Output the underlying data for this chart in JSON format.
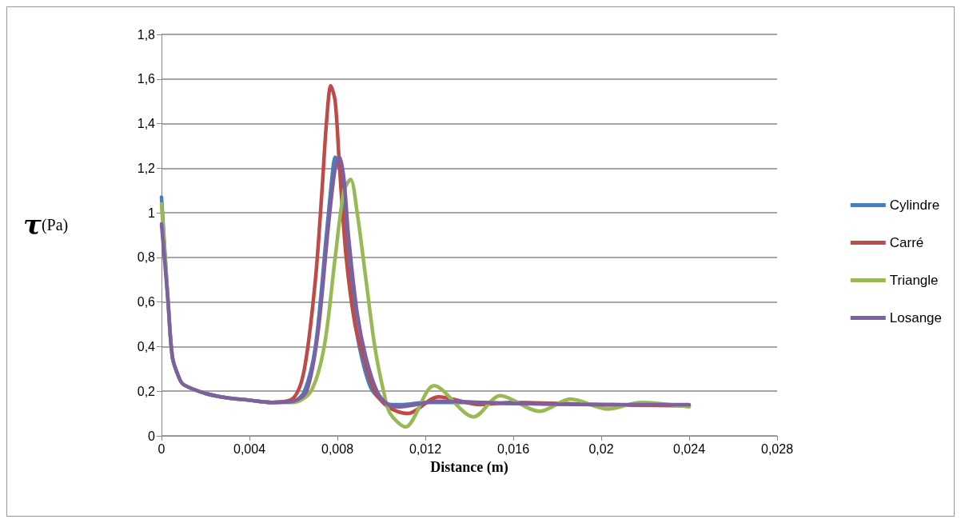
{
  "chart_data": {
    "type": "line",
    "xlabel": "Distance (m)",
    "ylabel": "τ(Pa)",
    "xlim": [
      0,
      0.028
    ],
    "xticks": [
      0,
      {
        "value": 0.004,
        "label": "0,004"
      },
      {
        "value": 0.008,
        "label": "0,008"
      },
      {
        "value": 0.012,
        "label": "0,012"
      },
      {
        "value": 0.016,
        "label": "0,016"
      },
      {
        "value": 0.02,
        "label": "0,02"
      },
      {
        "value": 0.024,
        "label": "0,024"
      },
      {
        "value": 0.028,
        "label": "0,028"
      }
    ],
    "ylim": [
      0,
      1.8
    ],
    "yticks": [
      0,
      {
        "value": 0.2,
        "label": "0,2"
      },
      {
        "value": 0.4,
        "label": "0,4"
      },
      {
        "value": 0.6,
        "label": "0,6"
      },
      {
        "value": 0.8,
        "label": "0,8"
      },
      1,
      {
        "value": 1.2,
        "label": "1,2"
      },
      {
        "value": 1.4,
        "label": "1,4"
      },
      {
        "value": 1.6,
        "label": "1,6"
      },
      {
        "value": 1.8,
        "label": "1,8"
      }
    ],
    "grid": "y",
    "legend": "right",
    "marker": "none",
    "line_style": "solid",
    "series": [
      {
        "name": "Cylindre",
        "color": "#4a7ebb",
        "x": [
          0,
          0.0003,
          0.0005,
          0.0008,
          0.001,
          0.002,
          0.003,
          0.004,
          0.005,
          0.006,
          0.0065,
          0.007,
          0.0075,
          0.0078,
          0.0079,
          0.0081,
          0.0083,
          0.0087,
          0.009,
          0.0095,
          0.01,
          0.0105,
          0.011,
          0.012,
          0.014,
          0.016,
          0.02,
          0.024
        ],
        "values": [
          1.07,
          0.6,
          0.35,
          0.26,
          0.23,
          0.19,
          0.17,
          0.16,
          0.15,
          0.155,
          0.2,
          0.4,
          0.9,
          1.2,
          1.25,
          1.2,
          1.0,
          0.6,
          0.4,
          0.22,
          0.16,
          0.14,
          0.14,
          0.15,
          0.15,
          0.145,
          0.14,
          0.135
        ]
      },
      {
        "name": "Carré",
        "color": "#be4b48",
        "x": [
          0.004,
          0.005,
          0.006,
          0.0065,
          0.007,
          0.0073,
          0.0075,
          0.0077,
          0.0079,
          0.0081,
          0.0084,
          0.0088,
          0.0092,
          0.0097,
          0.0103,
          0.0112,
          0.0126,
          0.0145,
          0.016,
          0.02,
          0.024
        ],
        "values": [
          0.16,
          0.15,
          0.17,
          0.3,
          0.7,
          1.1,
          1.4,
          1.57,
          1.5,
          1.2,
          0.8,
          0.5,
          0.35,
          0.2,
          0.13,
          0.1,
          0.175,
          0.14,
          0.15,
          0.14,
          0.135
        ]
      },
      {
        "name": "Triangle",
        "color": "#98b954",
        "x": [
          0,
          0.0003,
          0.0005,
          0.0008,
          0.001,
          0.002,
          0.003,
          0.004,
          0.005,
          0.006,
          0.0068,
          0.0074,
          0.0079,
          0.0083,
          0.0086,
          0.0089,
          0.0093,
          0.0097,
          0.0101,
          0.0104,
          0.0111,
          0.0124,
          0.0142,
          0.0154,
          0.0172,
          0.0186,
          0.0203,
          0.0218,
          0.024
        ],
        "values": [
          1.04,
          0.6,
          0.35,
          0.26,
          0.23,
          0.19,
          0.17,
          0.16,
          0.15,
          0.15,
          0.2,
          0.4,
          0.8,
          1.1,
          1.15,
          1.0,
          0.7,
          0.4,
          0.2,
          0.1,
          0.04,
          0.225,
          0.085,
          0.18,
          0.11,
          0.165,
          0.12,
          0.15,
          0.13
        ]
      },
      {
        "name": "Losange",
        "color": "#7d60a0",
        "x": [
          0,
          0.0003,
          0.0005,
          0.0008,
          0.001,
          0.002,
          0.003,
          0.004,
          0.005,
          0.006,
          0.0066,
          0.0071,
          0.0076,
          0.0079,
          0.0081,
          0.0083,
          0.0085,
          0.0089,
          0.0093,
          0.0098,
          0.0103,
          0.0108,
          0.0126,
          0.016,
          0.02,
          0.024
        ],
        "values": [
          0.95,
          0.6,
          0.35,
          0.26,
          0.23,
          0.19,
          0.17,
          0.16,
          0.15,
          0.155,
          0.2,
          0.45,
          0.95,
          1.2,
          1.25,
          1.15,
          0.9,
          0.55,
          0.35,
          0.2,
          0.14,
          0.13,
          0.155,
          0.145,
          0.14,
          0.14
        ]
      }
    ]
  }
}
